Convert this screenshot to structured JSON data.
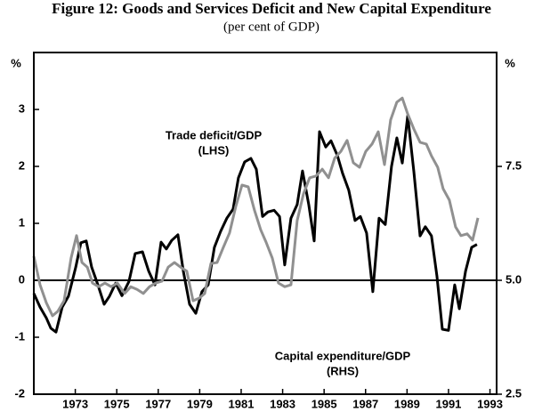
{
  "chart_data": {
    "type": "line",
    "title": "Figure 12: Goods and Services Deficit and New Capital Expenditure",
    "subtitle": "(per cent of GDP)",
    "ylabel": "%",
    "y2label": "%",
    "xlim": [
      1971,
      1993.32
    ],
    "xticks": [
      1973,
      1975,
      1977,
      1979,
      1981,
      1983,
      1985,
      1987,
      1989,
      1991,
      1993
    ],
    "ylim": [
      -2,
      4
    ],
    "yticks": [
      -2,
      -1,
      0,
      1,
      2,
      3
    ],
    "y2lim": [
      2.5,
      10
    ],
    "y2ticks": [
      {
        "value": 2.5,
        "label": "2.5"
      },
      {
        "value": 5,
        "label": "5.0"
      },
      7.5
    ],
    "zero_line": true,
    "series": [
      {
        "name": "Trade deficit/GDP",
        "side_label": "(LHS)",
        "color": "#000000",
        "axis": "y",
        "x": [
          1971.0,
          1971.3,
          1971.6,
          1971.82,
          1972.07,
          1972.37,
          1972.67,
          1973.02,
          1973.27,
          1973.53,
          1973.79,
          1974.09,
          1974.39,
          1974.65,
          1974.95,
          1975.25,
          1975.59,
          1975.89,
          1976.24,
          1976.54,
          1976.84,
          1977.14,
          1977.39,
          1977.65,
          1977.95,
          1978.21,
          1978.51,
          1978.81,
          1979.11,
          1979.41,
          1979.71,
          1980.01,
          1980.31,
          1980.61,
          1980.87,
          1981.17,
          1981.47,
          1981.73,
          1982.03,
          1982.29,
          1982.59,
          1982.85,
          1983.1,
          1983.4,
          1983.7,
          1983.96,
          1984.26,
          1984.52,
          1984.78,
          1985.08,
          1985.33,
          1985.64,
          1985.89,
          1986.19,
          1986.49,
          1986.75,
          1987.05,
          1987.35,
          1987.65,
          1987.95,
          1988.25,
          1988.51,
          1988.77,
          1989.03,
          1989.33,
          1989.63,
          1989.88,
          1990.18,
          1990.44,
          1990.7,
          1991.0,
          1991.3,
          1991.52,
          1991.82,
          1992.12,
          1992.37
        ],
        "values": [
          -0.23,
          -0.47,
          -0.66,
          -0.84,
          -0.91,
          -0.47,
          -0.28,
          0.23,
          0.66,
          0.69,
          0.23,
          -0.08,
          -0.42,
          -0.28,
          -0.05,
          -0.27,
          -0.02,
          0.47,
          0.5,
          0.16,
          -0.08,
          0.67,
          0.55,
          0.7,
          0.8,
          0.16,
          -0.42,
          -0.58,
          -0.2,
          -0.08,
          0.58,
          0.86,
          1.09,
          1.25,
          1.8,
          2.08,
          2.14,
          1.95,
          1.12,
          1.2,
          1.23,
          1.12,
          0.27,
          1.09,
          1.33,
          1.92,
          1.33,
          0.69,
          2.61,
          2.34,
          2.45,
          2.19,
          1.88,
          1.58,
          1.05,
          1.12,
          0.83,
          -0.2,
          1.09,
          0.98,
          2.0,
          2.5,
          2.06,
          2.89,
          1.91,
          0.78,
          0.94,
          0.78,
          0.08,
          -0.86,
          -0.88,
          -0.08,
          -0.5,
          0.16,
          0.58,
          0.63
        ]
      },
      {
        "name": "Capital expenditure/GDP",
        "side_label": "(RHS)",
        "color": "#909090",
        "axis": "y2",
        "x": [
          1971.0,
          1971.3,
          1971.6,
          1971.9,
          1972.16,
          1972.46,
          1972.8,
          1973.06,
          1973.32,
          1973.58,
          1973.83,
          1974.13,
          1974.43,
          1974.73,
          1975.03,
          1975.38,
          1975.68,
          1975.98,
          1976.28,
          1976.58,
          1976.88,
          1977.18,
          1977.48,
          1977.78,
          1978.08,
          1978.38,
          1978.68,
          1978.98,
          1979.24,
          1979.54,
          1979.84,
          1980.14,
          1980.44,
          1980.74,
          1981.04,
          1981.34,
          1981.64,
          1981.94,
          1982.2,
          1982.5,
          1982.8,
          1983.1,
          1983.4,
          1983.7,
          1984.0,
          1984.3,
          1984.61,
          1984.91,
          1985.21,
          1985.51,
          1985.81,
          1986.11,
          1986.41,
          1986.71,
          1987.01,
          1987.31,
          1987.61,
          1987.91,
          1988.21,
          1988.51,
          1988.77,
          1989.03,
          1989.33,
          1989.63,
          1989.93,
          1990.18,
          1990.48,
          1990.74,
          1991.04,
          1991.34,
          1991.6,
          1991.9,
          1992.16,
          1992.42
        ],
        "values": [
          5.53,
          4.9,
          4.51,
          4.22,
          4.32,
          4.55,
          5.49,
          5.98,
          5.39,
          5.29,
          4.94,
          4.86,
          4.94,
          4.86,
          4.94,
          4.71,
          4.86,
          4.8,
          4.71,
          4.86,
          4.94,
          4.98,
          5.29,
          5.39,
          5.29,
          5.2,
          4.55,
          4.61,
          4.71,
          5.37,
          5.39,
          5.72,
          6.04,
          6.62,
          7.09,
          7.05,
          6.54,
          6.11,
          5.84,
          5.49,
          4.94,
          4.86,
          4.9,
          6.31,
          6.89,
          7.25,
          7.29,
          7.44,
          7.25,
          7.68,
          7.83,
          8.07,
          7.58,
          7.48,
          7.83,
          7.99,
          8.26,
          7.54,
          8.52,
          8.91,
          9.0,
          8.65,
          8.32,
          8.03,
          7.99,
          7.73,
          7.48,
          7.01,
          6.76,
          6.17,
          5.98,
          6.02,
          5.88,
          6.37
        ]
      }
    ]
  }
}
